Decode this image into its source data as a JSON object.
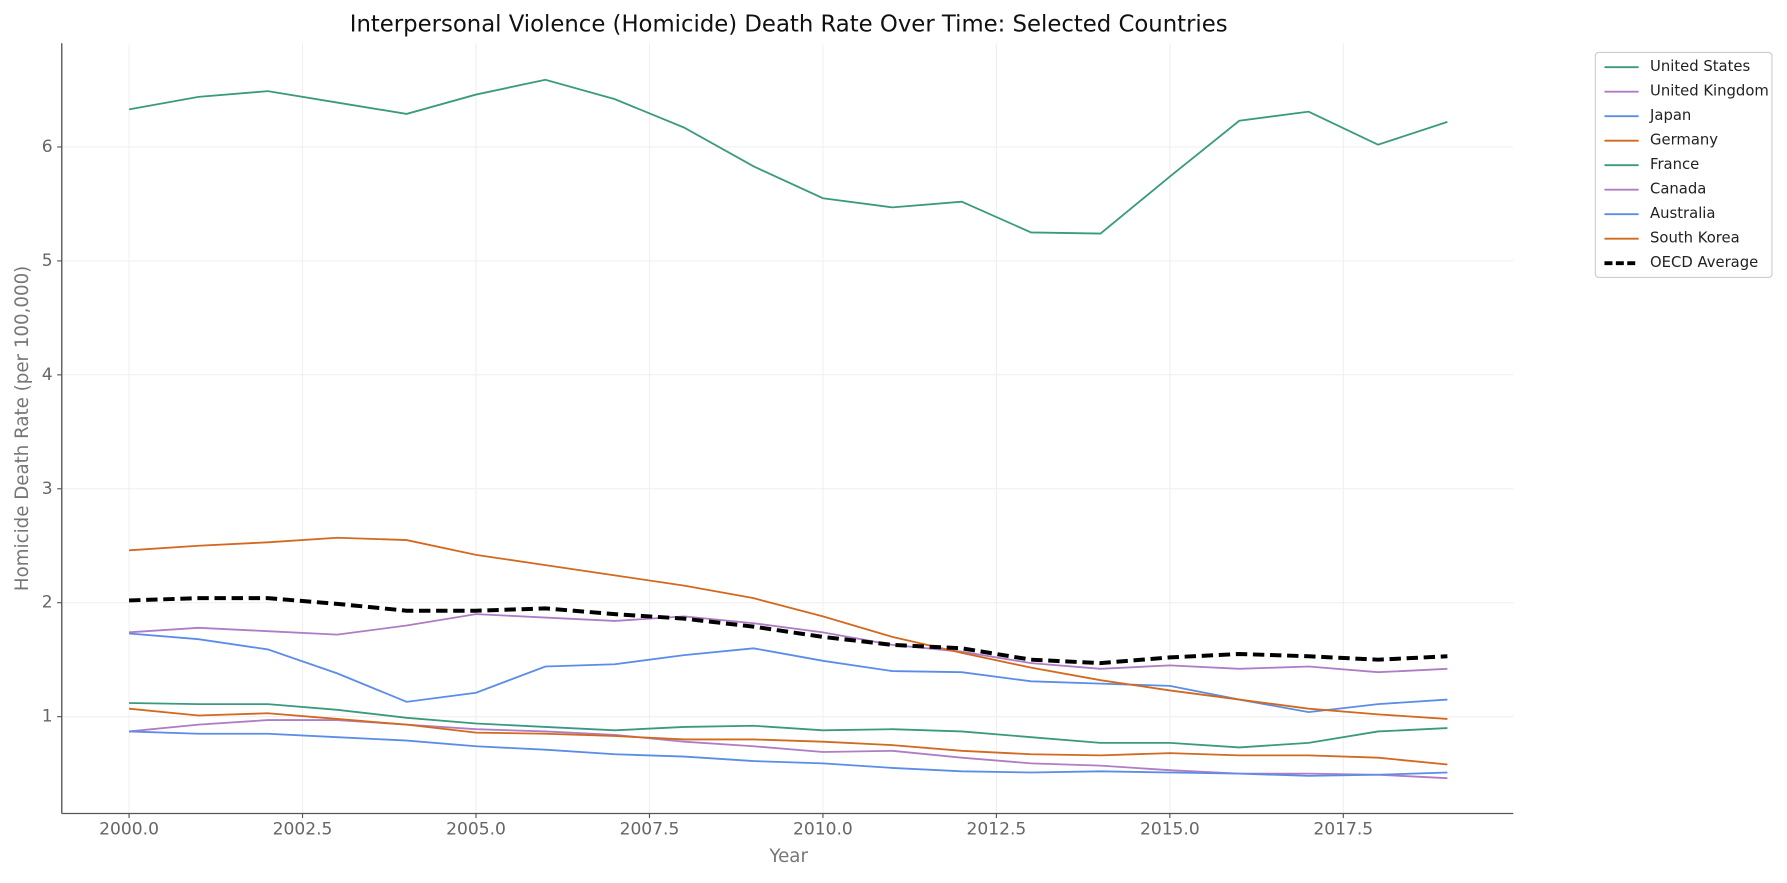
{
  "chart_data": {
    "type": "line",
    "title": "Interpersonal Violence (Homicide) Death Rate Over Time: Selected Countries",
    "xlabel": "Year",
    "ylabel": "Homicide Death Rate (per 100,000)",
    "x": [
      2000,
      2001,
      2002,
      2003,
      2004,
      2005,
      2006,
      2007,
      2008,
      2009,
      2010,
      2011,
      2012,
      2013,
      2014,
      2015,
      2016,
      2017,
      2018,
      2019
    ],
    "series": [
      {
        "name": "United States",
        "color": "#3a9a80",
        "values": [
          6.33,
          6.44,
          6.49,
          6.39,
          6.29,
          6.46,
          6.59,
          6.42,
          6.17,
          5.83,
          5.55,
          5.47,
          5.52,
          5.25,
          5.24,
          5.74,
          6.23,
          6.31,
          6.02,
          6.22
        ]
      },
      {
        "name": "United Kingdom",
        "color": "#b07cc6",
        "values": [
          0.87,
          0.93,
          0.97,
          0.97,
          0.93,
          0.89,
          0.87,
          0.84,
          0.78,
          0.74,
          0.69,
          0.7,
          0.64,
          0.59,
          0.57,
          0.53,
          0.5,
          0.5,
          0.49,
          0.46
        ]
      },
      {
        "name": "Japan",
        "color": "#5b8de8",
        "values": [
          0.87,
          0.85,
          0.85,
          0.82,
          0.79,
          0.74,
          0.71,
          0.67,
          0.65,
          0.61,
          0.59,
          0.55,
          0.52,
          0.51,
          0.52,
          0.51,
          0.5,
          0.48,
          0.49,
          0.51
        ]
      },
      {
        "name": "Germany",
        "color": "#d2691e",
        "values": [
          1.07,
          1.01,
          1.03,
          0.98,
          0.93,
          0.86,
          0.85,
          0.83,
          0.8,
          0.8,
          0.78,
          0.75,
          0.7,
          0.67,
          0.66,
          0.68,
          0.66,
          0.66,
          0.64,
          0.58
        ]
      },
      {
        "name": "France",
        "color": "#3a9a80",
        "values": [
          1.12,
          1.11,
          1.11,
          1.06,
          0.99,
          0.94,
          0.91,
          0.88,
          0.91,
          0.92,
          0.88,
          0.89,
          0.87,
          0.82,
          0.77,
          0.77,
          0.73,
          0.77,
          0.87,
          0.9
        ]
      },
      {
        "name": "Canada",
        "color": "#b07cc6",
        "values": [
          1.74,
          1.78,
          1.75,
          1.72,
          1.8,
          1.9,
          1.87,
          1.84,
          1.88,
          1.82,
          1.74,
          1.63,
          1.57,
          1.47,
          1.42,
          1.45,
          1.42,
          1.44,
          1.39,
          1.42
        ]
      },
      {
        "name": "Australia",
        "color": "#5b8de8",
        "values": [
          1.73,
          1.68,
          1.59,
          1.38,
          1.13,
          1.21,
          1.44,
          1.46,
          1.54,
          1.6,
          1.49,
          1.4,
          1.39,
          1.31,
          1.29,
          1.27,
          1.15,
          1.04,
          1.11,
          1.15
        ]
      },
      {
        "name": "South Korea",
        "color": "#d2691e",
        "values": [
          2.46,
          2.5,
          2.53,
          2.57,
          2.55,
          2.42,
          2.33,
          2.24,
          2.15,
          2.04,
          1.88,
          1.7,
          1.56,
          1.43,
          1.32,
          1.23,
          1.15,
          1.07,
          1.02,
          0.98
        ]
      },
      {
        "name": "OECD Average",
        "color": "#000000",
        "dashed": true,
        "values": [
          2.02,
          2.04,
          2.04,
          1.99,
          1.93,
          1.93,
          1.95,
          1.9,
          1.86,
          1.79,
          1.7,
          1.63,
          1.6,
          1.5,
          1.47,
          1.52,
          1.55,
          1.53,
          1.5,
          1.53
        ]
      }
    ],
    "xlim": [
      1999.03,
      2019.95
    ],
    "xticks": [
      {
        "value": 2000,
        "label": "2000.0"
      },
      {
        "value": 2002.5,
        "label": "2002.5"
      },
      {
        "value": 2005,
        "label": "2005.0"
      },
      {
        "value": 2007.5,
        "label": "2007.5"
      },
      {
        "value": 2010,
        "label": "2010.0"
      },
      {
        "value": 2012.5,
        "label": "2012.5"
      },
      {
        "value": 2015,
        "label": "2015.0"
      },
      {
        "value": 2017.5,
        "label": "2017.5"
      }
    ],
    "ylim": [
      0.15,
      6.91
    ],
    "yticks": [
      1,
      2,
      3,
      4,
      5,
      6
    ],
    "grid": true,
    "legend": "outside-right"
  }
}
